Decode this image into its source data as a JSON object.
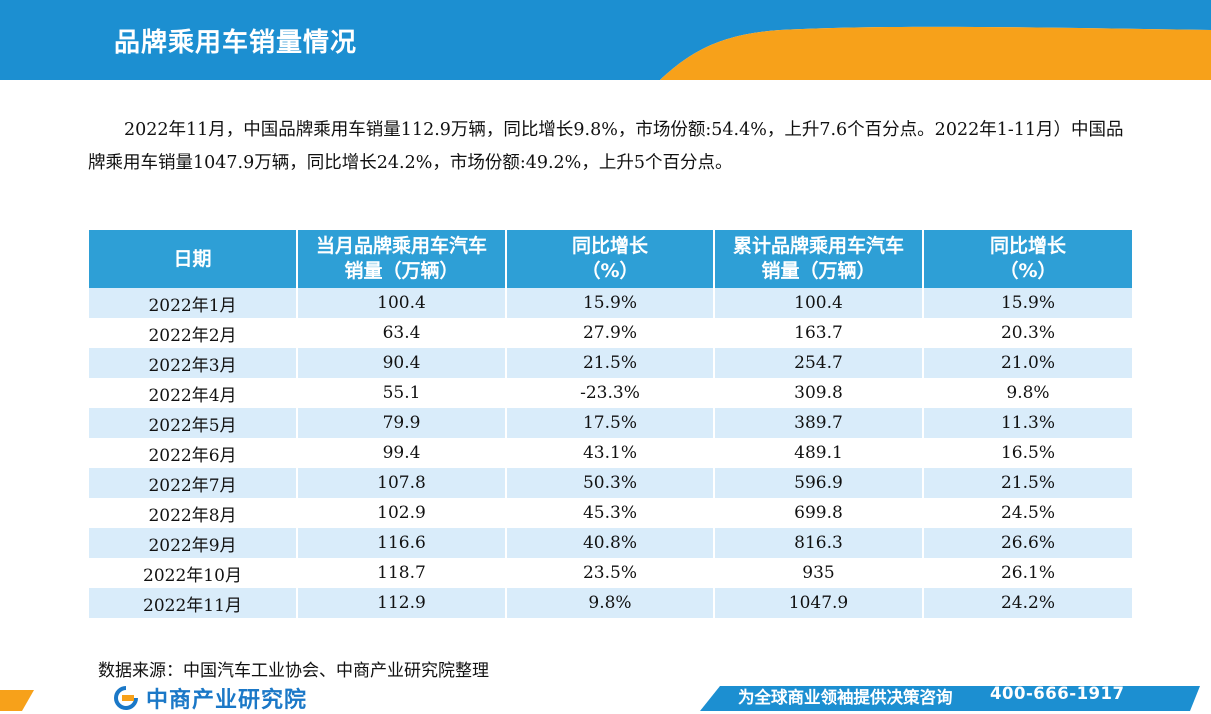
{
  "header": {
    "title": "品牌乘用车销量情况"
  },
  "intro": {
    "text": "2022年11月，中国品牌乘用车销量112.9万辆，同比增长9.8%，市场份额:54.4%，上升7.6个百分点。2022年1-11月）中国品牌乘用车销量1047.9万辆，同比增长24.2%，市场份额:49.2%，上升5个百分点。"
  },
  "table": {
    "headers": [
      [
        "日期"
      ],
      [
        "当月品牌乘用车汽车",
        "销量（万辆）"
      ],
      [
        "同比增长",
        "（%）"
      ],
      [
        "累计品牌乘用车汽车",
        "销量（万辆）"
      ],
      [
        "同比增长",
        "（%）"
      ]
    ],
    "rows": [
      [
        "2022年1月",
        "100.4",
        "15.9%",
        "100.4",
        "15.9%"
      ],
      [
        "2022年2月",
        "63.4",
        "27.9%",
        "163.7",
        "20.3%"
      ],
      [
        "2022年3月",
        "90.4",
        "21.5%",
        "254.7",
        "21.0%"
      ],
      [
        "2022年4月",
        "55.1",
        "-23.3%",
        "309.8",
        "9.8%"
      ],
      [
        "2022年5月",
        "79.9",
        "17.5%",
        "389.7",
        "11.3%"
      ],
      [
        "2022年6月",
        "99.4",
        "43.1%",
        "489.1",
        "16.5%"
      ],
      [
        "2022年7月",
        "107.8",
        "50.3%",
        "596.9",
        "21.5%"
      ],
      [
        "2022年8月",
        "102.9",
        "45.3%",
        "699.8",
        "24.5%"
      ],
      [
        "2022年9月",
        "116.6",
        "40.8%",
        "816.3",
        "26.6%"
      ],
      [
        "2022年10月",
        "118.7",
        "23.5%",
        "935",
        "26.1%"
      ],
      [
        "2022年11月",
        "112.9",
        "9.8%",
        "1047.9",
        "24.2%"
      ]
    ]
  },
  "source": "数据来源：中国汽车工业协会、中商产业研究院整理",
  "footer": {
    "logo_text": "中商产业研究院",
    "slogan": "为全球商业领袖提供决策咨询",
    "phone": "400-666-1917"
  },
  "colors": {
    "header_blue": "#1c8fd1",
    "accent_orange": "#f7a11a",
    "table_header": "#2e9fd6",
    "row_stripe": "#d9ecfa"
  }
}
